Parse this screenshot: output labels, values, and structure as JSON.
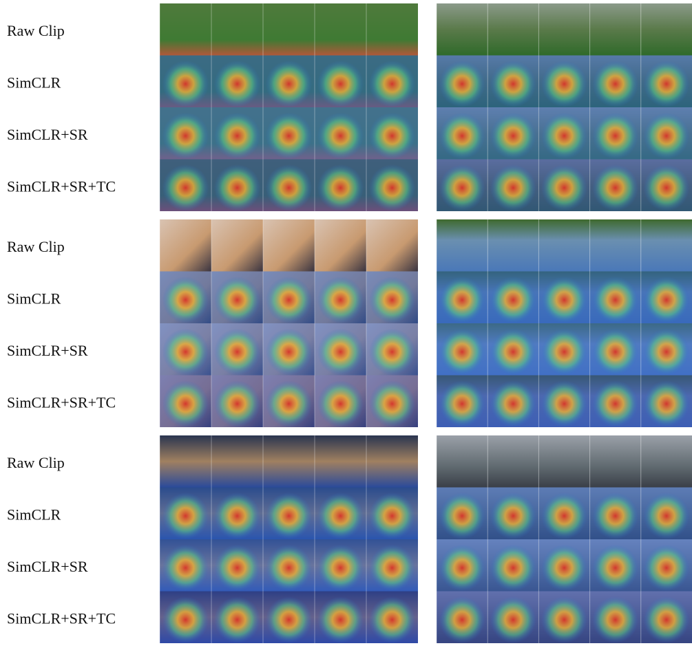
{
  "groups": [
    {
      "rows": [
        "Raw Clip",
        "SimCLR",
        "SimCLR+SR",
        "SimCLR+SR+TC"
      ]
    },
    {
      "rows": [
        "Raw Clip",
        "SimCLR",
        "SimCLR+SR",
        "SimCLR+SR+TC"
      ]
    },
    {
      "rows": [
        "Raw Clip",
        "SimCLR",
        "SimCLR+SR",
        "SimCLR+SR+TC"
      ]
    }
  ]
}
